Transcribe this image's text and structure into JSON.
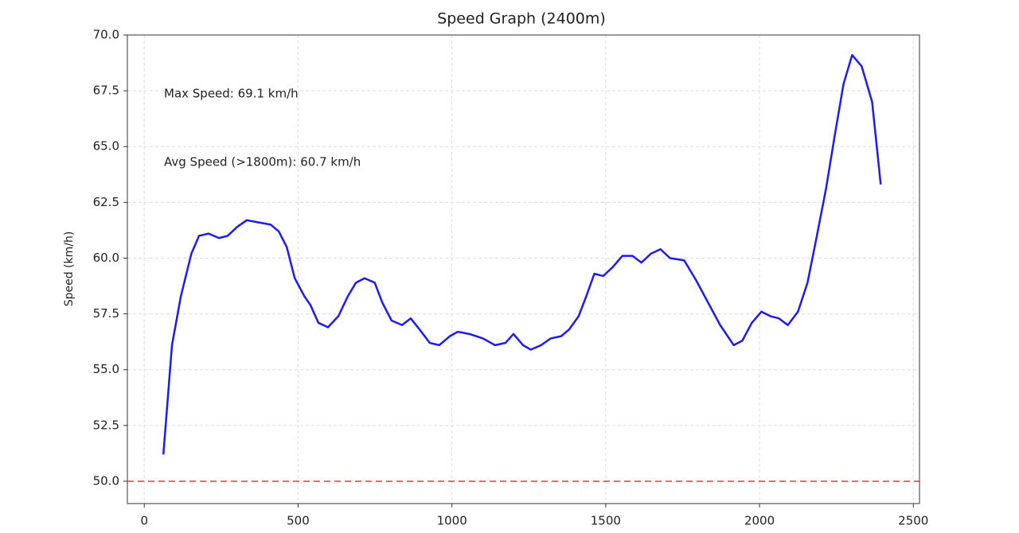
{
  "chart_data": {
    "type": "line",
    "title": "Speed Graph (2400m)",
    "ylabel": "Speed (km/h)",
    "annotations": [
      "Max Speed: 69.1 km/h",
      "Avg Speed (>1800m): 60.7 km/h"
    ],
    "annotation_colors": [
      "#b22222",
      "#3333aa"
    ],
    "threshold": 50,
    "threshold_color": "#e53935",
    "grid": true,
    "xlim": [
      -55,
      2520
    ],
    "ylim": [
      49,
      70
    ],
    "xticks": [
      0,
      500,
      1000,
      1500,
      2000,
      2500
    ],
    "yticks": [
      {
        "value": 50,
        "label": "50.0"
      },
      {
        "value": 52.5,
        "label": "52.5"
      },
      {
        "value": 55,
        "label": "55.0"
      },
      {
        "value": 57.5,
        "label": "57.5"
      },
      {
        "value": 60,
        "label": "60.0"
      },
      {
        "value": 62.5,
        "label": "62.5"
      },
      {
        "value": 65,
        "label": "65.0"
      },
      {
        "value": 67.5,
        "label": "67.5"
      },
      {
        "value": 70,
        "label": "70.0"
      }
    ],
    "x": [
      62,
      90,
      119,
      153,
      178,
      209,
      243,
      271,
      302,
      333,
      372,
      411,
      437,
      463,
      489,
      520,
      540,
      566,
      597,
      631,
      662,
      688,
      716,
      749,
      774,
      804,
      838,
      866,
      895,
      928,
      959,
      993,
      1019,
      1057,
      1101,
      1140,
      1174,
      1200,
      1231,
      1256,
      1290,
      1321,
      1355,
      1381,
      1412,
      1437,
      1463,
      1492,
      1523,
      1554,
      1587,
      1616,
      1647,
      1678,
      1709,
      1755,
      1794,
      1833,
      1872,
      1916,
      1944,
      1975,
      2006,
      2035,
      2063,
      2092,
      2125,
      2156,
      2185,
      2216,
      2247,
      2273,
      2301,
      2332,
      2366,
      2394
    ],
    "series": [
      {
        "color": "#1a1aff",
        "values": [
          51.2,
          56.1,
          58.3,
          60.2,
          61.0,
          61.1,
          60.9,
          61.0,
          61.4,
          61.7,
          61.6,
          61.5,
          61.2,
          60.5,
          59.1,
          58.3,
          57.9,
          57.1,
          56.9,
          57.4,
          58.3,
          58.9,
          59.1,
          58.9,
          58.0,
          57.2,
          57.0,
          57.3,
          56.8,
          56.2,
          56.1,
          56.5,
          56.7,
          56.6,
          56.4,
          56.1,
          56.2,
          56.6,
          56.1,
          55.9,
          56.1,
          56.4,
          56.5,
          56.8,
          57.4,
          58.3,
          59.3,
          59.2,
          59.6,
          60.1,
          60.1,
          59.8,
          60.2,
          60.4,
          60.0,
          59.9,
          59.0,
          58.0,
          57.0,
          56.1,
          56.3,
          57.1,
          57.6,
          57.4,
          57.3,
          57.0,
          57.6,
          58.9,
          60.9,
          63.1,
          65.7,
          67.8,
          69.1,
          68.6,
          67.0,
          63.3
        ]
      }
    ]
  }
}
